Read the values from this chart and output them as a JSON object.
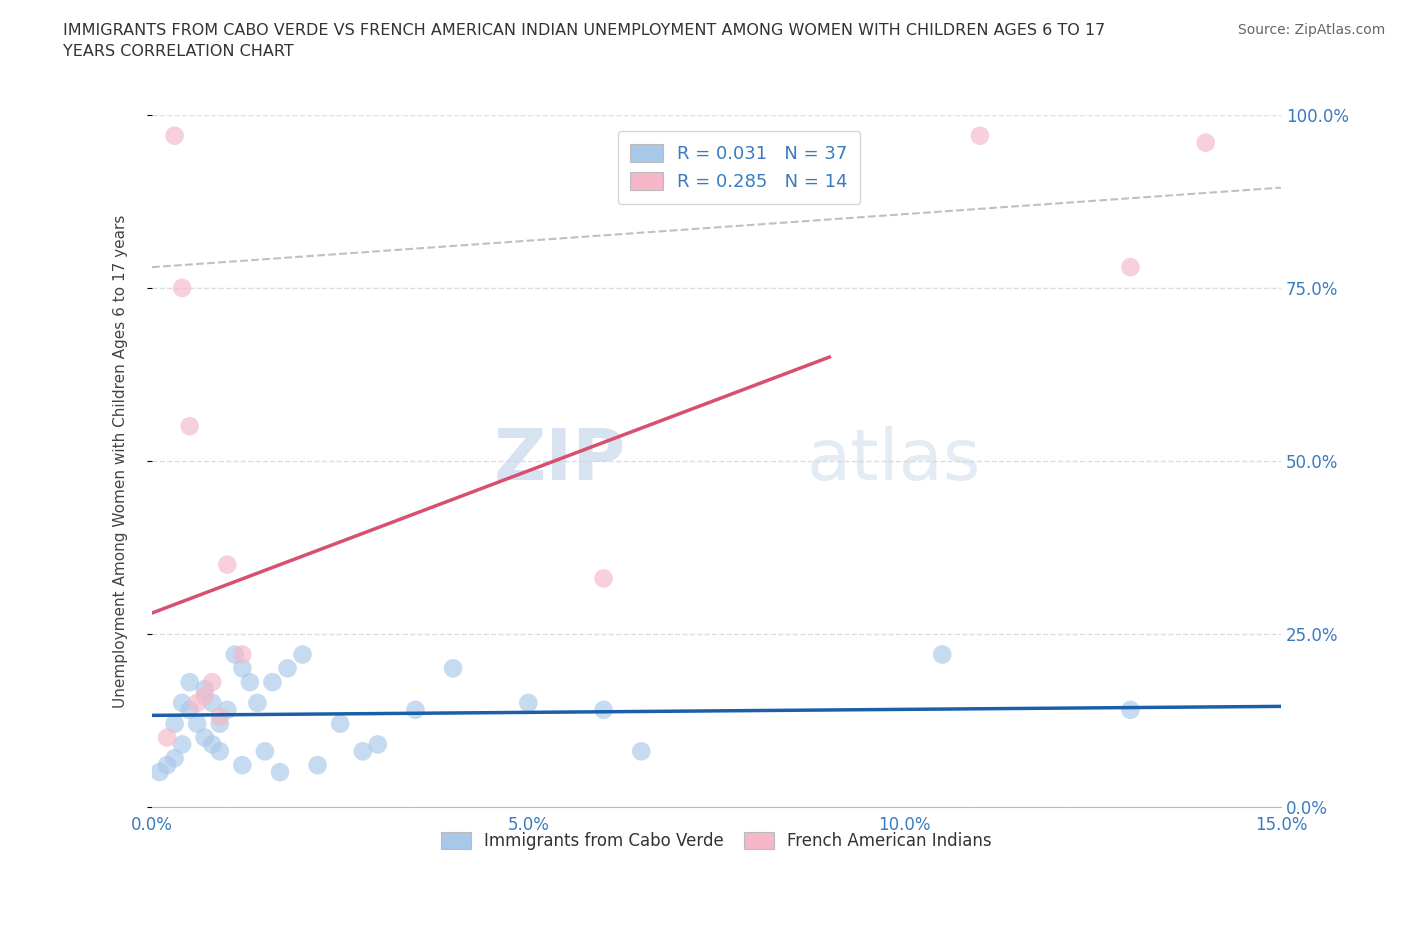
{
  "title": "IMMIGRANTS FROM CABO VERDE VS FRENCH AMERICAN INDIAN UNEMPLOYMENT AMONG WOMEN WITH CHILDREN AGES 6 TO 17\nYEARS CORRELATION CHART",
  "source": "Source: ZipAtlas.com",
  "ylabel": "Unemployment Among Women with Children Ages 6 to 17 years",
  "xlim": [
    0.0,
    0.15
  ],
  "ylim": [
    0.0,
    1.0
  ],
  "xticks": [
    0.0,
    0.05,
    0.1,
    0.15
  ],
  "xtick_labels": [
    "0.0%",
    "5.0%",
    "10.0%",
    "15.0%"
  ],
  "yticks": [
    0.0,
    0.25,
    0.5,
    0.75,
    1.0
  ],
  "ytick_labels": [
    "0.0%",
    "25.0%",
    "50.0%",
    "75.0%",
    "100.0%"
  ],
  "legend1_label": "R = 0.031   N = 37",
  "legend2_label": "R = 0.285   N = 14",
  "legend_bottom_label1": "Immigrants from Cabo Verde",
  "legend_bottom_label2": "French American Indians",
  "blue_color": "#a8c8e8",
  "pink_color": "#f4b8c8",
  "line_blue_color": "#1a5fa8",
  "line_pink_color": "#d85070",
  "watermark_zip": "ZIP",
  "watermark_atlas": "atlas",
  "cabo_verde_x": [
    0.001,
    0.002,
    0.003,
    0.003,
    0.004,
    0.004,
    0.005,
    0.005,
    0.006,
    0.007,
    0.007,
    0.008,
    0.008,
    0.009,
    0.009,
    0.01,
    0.011,
    0.012,
    0.012,
    0.013,
    0.014,
    0.015,
    0.016,
    0.017,
    0.018,
    0.02,
    0.022,
    0.025,
    0.028,
    0.03,
    0.035,
    0.04,
    0.05,
    0.06,
    0.065,
    0.105,
    0.13
  ],
  "cabo_verde_y": [
    0.05,
    0.06,
    0.07,
    0.12,
    0.09,
    0.15,
    0.14,
    0.18,
    0.12,
    0.1,
    0.17,
    0.09,
    0.15,
    0.08,
    0.12,
    0.14,
    0.22,
    0.06,
    0.2,
    0.18,
    0.15,
    0.08,
    0.18,
    0.05,
    0.2,
    0.22,
    0.06,
    0.12,
    0.08,
    0.09,
    0.14,
    0.2,
    0.15,
    0.14,
    0.08,
    0.22,
    0.14
  ],
  "french_ai_x": [
    0.002,
    0.003,
    0.004,
    0.005,
    0.006,
    0.007,
    0.008,
    0.009,
    0.01,
    0.012,
    0.06,
    0.11,
    0.13,
    0.14
  ],
  "french_ai_y": [
    0.1,
    0.97,
    0.75,
    0.55,
    0.15,
    0.16,
    0.18,
    0.13,
    0.35,
    0.22,
    0.33,
    0.97,
    0.78,
    0.96
  ],
  "blue_trend_x": [
    0.0,
    0.15
  ],
  "blue_trend_y": [
    0.132,
    0.145
  ],
  "pink_trend_x": [
    0.0,
    0.09
  ],
  "pink_trend_y": [
    0.28,
    0.65
  ],
  "gray_trend_x": [
    0.0,
    0.15
  ],
  "gray_trend_y": [
    0.78,
    0.895
  ]
}
